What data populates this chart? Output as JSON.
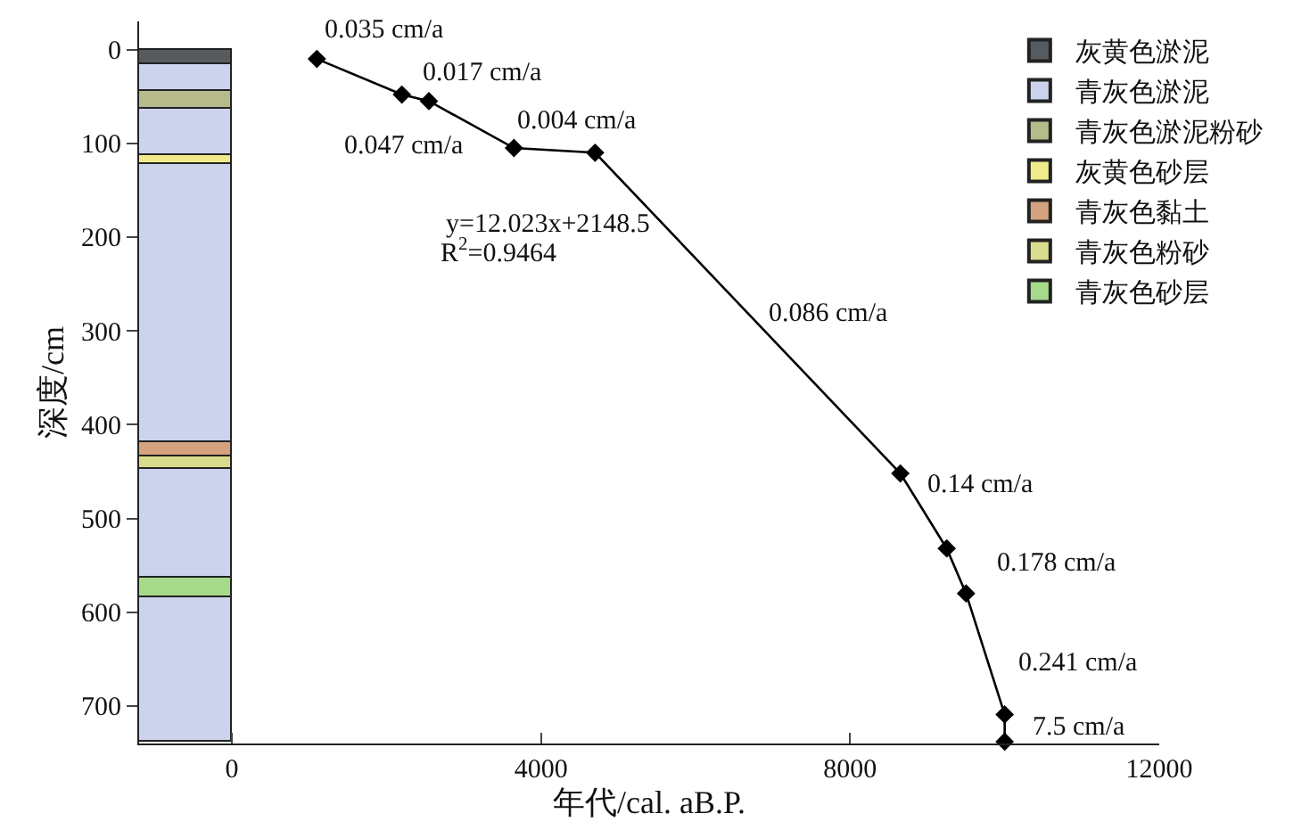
{
  "chart_data": {
    "type": "line",
    "xlabel": "年代/cal. aB.P.",
    "ylabel": "深度/cm",
    "xlim": [
      -1200,
      12000
    ],
    "xticks": [
      0,
      4000,
      8000,
      12000
    ],
    "ylim": [
      740,
      -30
    ],
    "yticks": [
      0,
      100,
      200,
      300,
      400,
      500,
      600,
      700
    ],
    "grid": false,
    "legend": "top right",
    "marker": "diamond",
    "line_style": "solid",
    "stacked": true,
    "series": [
      {
        "type": "bar",
        "name": "灰黄色淤泥",
        "color": "#555b5e",
        "x": [
          -600
        ],
        "values": [
          15
        ]
      },
      {
        "type": "bar",
        "name": "青灰色淤泥",
        "color": "#ccd3ec",
        "x": [
          -600
        ],
        "values": [
          29
        ]
      },
      {
        "type": "bar",
        "name": "青灰色淤泥粉砂",
        "color": "#b6bb8c",
        "x": [
          -600
        ],
        "values": [
          19
        ]
      },
      {
        "type": "bar",
        "color": "#ccd3ec",
        "x": [
          -600
        ],
        "values": [
          49
        ]
      },
      {
        "type": "bar",
        "name": "灰黄色砂层",
        "color": "#f0eb8a",
        "x": [
          -600
        ],
        "values": [
          10
        ]
      },
      {
        "type": "bar",
        "color": "#ccd3ec",
        "x": [
          -600
        ],
        "values": [
          296
        ]
      },
      {
        "type": "bar",
        "name": "青灰色黏土",
        "color": "#d4a27e",
        "x": [
          -600
        ],
        "values": [
          16
        ]
      },
      {
        "type": "bar",
        "name": "青灰色粉砂",
        "color": "#d8dc8c",
        "x": [
          -600
        ],
        "values": [
          13
        ]
      },
      {
        "type": "bar",
        "color": "#ccd3ec",
        "x": [
          -600
        ],
        "values": [
          116
        ]
      },
      {
        "type": "bar",
        "name": "青灰色砂层",
        "color": "#a6d98a",
        "x": [
          -600
        ],
        "values": [
          21
        ]
      },
      {
        "type": "bar",
        "color": "#ccd3ec",
        "x": [
          -600
        ],
        "values": [
          154
        ]
      },
      {
        "color": "#000000",
        "x": [
          1100,
          2200,
          2550,
          3650,
          4700,
          8650,
          9250,
          9500,
          10000,
          10000
        ],
        "values": [
          10,
          48,
          55,
          105,
          110,
          452,
          532,
          580,
          709,
          738
        ]
      }
    ],
    "annotations": [
      "0.035 cm/a",
      "0.017 cm/a",
      "0.047 cm/a",
      "0.004 cm/a",
      "0.086 cm/a",
      "0.14 cm/a",
      "0.178 cm/a",
      "0.241 cm/a",
      "7.5 cm/a",
      "y=12.023x+2148.5",
      "R$^{2}$=0.9464"
    ]
  }
}
